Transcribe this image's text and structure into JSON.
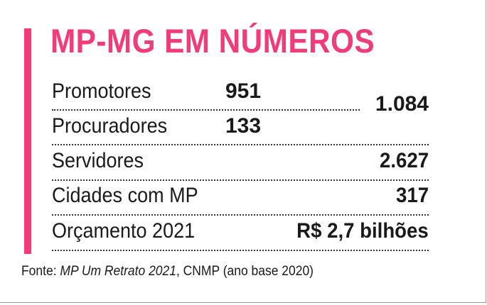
{
  "title": "MP-MG EM NÚMEROS",
  "rows": [
    {
      "label": "Promotores",
      "value": "951"
    },
    {
      "label": "Procuradores",
      "value": "133"
    },
    {
      "label": "Servidores",
      "value": "2.627"
    },
    {
      "label": "Cidades com MP",
      "value": "317"
    },
    {
      "label": "Orçamento 2021",
      "value": "R$ 2,7 bilhões"
    }
  ],
  "members_total": "1.084",
  "source": {
    "prefix": "Fonte: ",
    "title": "MP Um Retrato 2021",
    "suffix": ", CNMP (ano base 2020)"
  },
  "colors": {
    "accent": "#f03c78",
    "text": "#1a1a1a"
  }
}
